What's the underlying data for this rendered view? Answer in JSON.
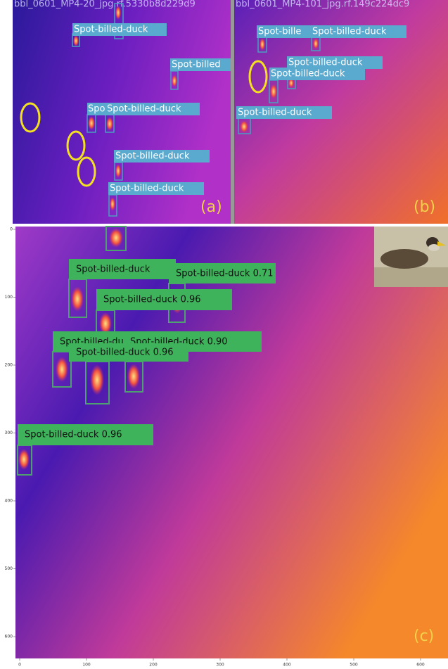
{
  "panels": [
    {
      "header": "bbl_0601_MP4-20_jpg.rf.5330b8d229d9",
      "labels": [
        "Spot-billed-duck",
        "Spot-billed",
        "Spo",
        "Spot-billed-duck",
        "Spot-billed-duck",
        "Spot-billed-duck"
      ],
      "tag": "(a)"
    },
    {
      "header": "bbl_0601_MP4-101_jpg.rf.149c224dc9",
      "labels": [
        "Spot-bille",
        "Spot-billed-duck",
        "Spot-billed-duck",
        "Spot-billed-duck",
        "Spot-billed-duck"
      ],
      "tag": "(b)"
    },
    {
      "labels": [
        "Spot-billed-duck",
        "Spot-billed-duck 0.71",
        "Spot-billed-duck 0.96",
        "Spot-billed-duck",
        "Spot-billed-duck 0.90",
        "Spot-billed-duck 0.96",
        "Spot-billed-duck 0.96"
      ],
      "tag": "(c)",
      "yticks": [
        0,
        100,
        200,
        300,
        400,
        500,
        600
      ],
      "xticks": [
        0,
        100,
        200,
        300,
        400,
        500,
        600
      ]
    }
  ]
}
